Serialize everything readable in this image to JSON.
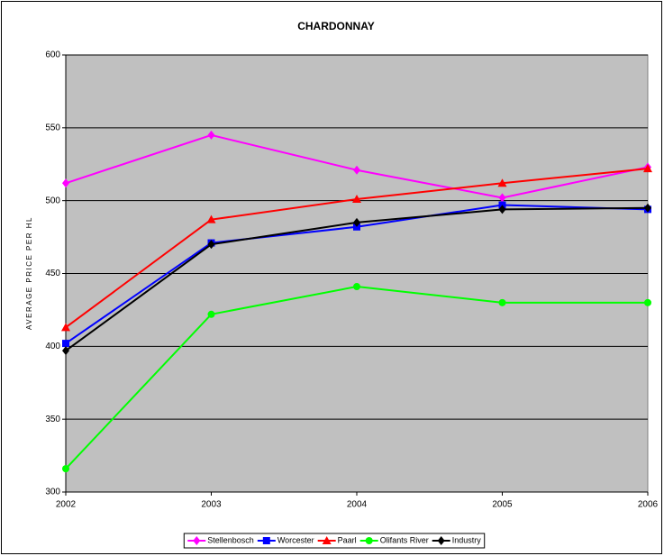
{
  "chart_data": {
    "type": "line",
    "title": "CHARDONNAY",
    "y_label": "AVERAGE PRICE PER HL",
    "categories": [
      "2002",
      "2003",
      "2004",
      "2005",
      "2006"
    ],
    "series": [
      {
        "name": "Stellenbosch",
        "color": "#ff00ff",
        "marker": "diamond",
        "values": [
          512,
          545,
          521,
          502,
          523
        ]
      },
      {
        "name": "Worcester",
        "color": "#0000ff",
        "marker": "square",
        "values": [
          402,
          471,
          482,
          497,
          494
        ]
      },
      {
        "name": "Paarl",
        "color": "#ff0000",
        "marker": "triangle",
        "values": [
          413,
          487,
          501,
          512,
          522
        ]
      },
      {
        "name": "Olifants River",
        "color": "#00ff00",
        "marker": "circle",
        "values": [
          316,
          422,
          441,
          430,
          430
        ]
      },
      {
        "name": "Industry",
        "color": "#000000",
        "marker": "diamond",
        "values": [
          397,
          470,
          485,
          494,
          495
        ]
      }
    ],
    "ylim": [
      300,
      600
    ],
    "yticks": [
      300,
      350,
      400,
      450,
      500,
      550,
      600
    ],
    "grid": true,
    "legend": "bottom"
  }
}
